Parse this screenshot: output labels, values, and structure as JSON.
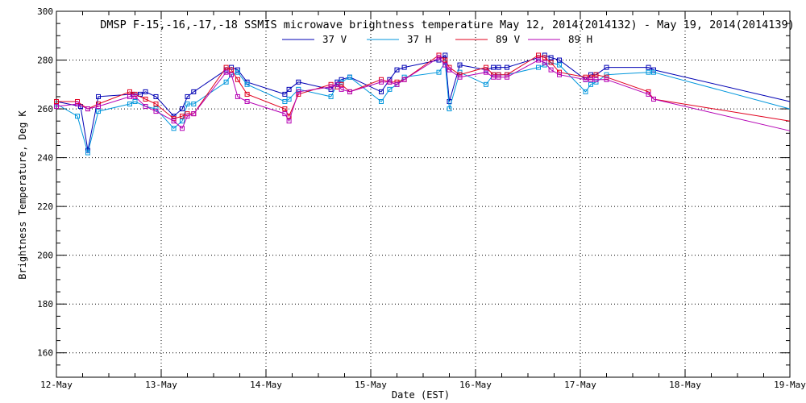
{
  "chart_data": {
    "type": "line",
    "title": "DMSP F-15,-16,-17,-18 SSMIS microwave brightness temperature May 12, 2014(2014132) - May 19, 2014(2014139)",
    "xlabel": "Date (EST)",
    "ylabel": "Brightness Temperature, Deg K",
    "x_ticks": [
      "12-May",
      "13-May",
      "14-May",
      "15-May",
      "16-May",
      "17-May",
      "18-May",
      "19-May"
    ],
    "xlim": [
      12,
      19
    ],
    "ylim": [
      150,
      300
    ],
    "y_ticks": [
      160,
      180,
      200,
      220,
      240,
      260,
      280,
      300
    ],
    "grid": true,
    "legend_position": "top-center",
    "series": [
      {
        "name": "37 V",
        "color": "#0000b4",
        "x": [
          12.0,
          12.23,
          12.3,
          12.4,
          12.73,
          12.8,
          12.85,
          12.95,
          13.12,
          13.2,
          13.25,
          13.31,
          13.62,
          13.67,
          13.73,
          13.82,
          14.18,
          14.22,
          14.31,
          14.62,
          14.68,
          14.72,
          14.8,
          15.1,
          15.18,
          15.25,
          15.32,
          15.65,
          15.71,
          15.75,
          15.85,
          16.1,
          16.17,
          16.22,
          16.3,
          16.6,
          16.66,
          16.72,
          16.8,
          17.05,
          17.1,
          17.15,
          17.25,
          17.65,
          17.7,
          19.0
        ],
        "y": [
          263,
          261,
          243,
          265,
          266,
          266,
          267,
          265,
          257,
          260,
          265,
          267,
          276,
          277,
          276,
          271,
          266,
          268,
          271,
          268,
          271,
          272,
          273,
          267,
          272,
          276,
          277,
          280,
          282,
          263,
          278,
          276,
          277,
          277,
          277,
          281,
          282,
          281,
          280,
          272,
          274,
          274,
          277,
          277,
          276,
          263
        ]
      },
      {
        "name": "37 H",
        "color": "#0096dc",
        "x": [
          12.0,
          12.2,
          12.3,
          12.4,
          12.7,
          12.75,
          12.85,
          12.95,
          13.12,
          13.2,
          13.25,
          13.31,
          13.62,
          13.67,
          13.73,
          13.82,
          14.18,
          14.22,
          14.31,
          14.62,
          14.68,
          14.72,
          14.8,
          15.1,
          15.18,
          15.25,
          15.32,
          15.65,
          15.71,
          15.75,
          15.85,
          16.1,
          16.17,
          16.22,
          16.3,
          16.6,
          16.66,
          16.72,
          16.8,
          17.05,
          17.1,
          17.15,
          17.25,
          17.65,
          17.7,
          19.0
        ],
        "y": [
          262,
          257,
          242,
          259,
          262,
          263,
          261,
          260,
          252,
          255,
          262,
          262,
          271,
          274,
          275,
          270,
          263,
          264,
          268,
          265,
          270,
          271,
          273,
          263,
          268,
          270,
          273,
          275,
          279,
          260,
          275,
          270,
          274,
          274,
          274,
          277,
          278,
          279,
          278,
          267,
          270,
          271,
          274,
          275,
          275,
          260
        ]
      },
      {
        "name": "89 V",
        "color": "#e1001e",
        "x": [
          12.0,
          12.2,
          12.3,
          12.4,
          12.7,
          12.75,
          12.85,
          12.95,
          13.12,
          13.2,
          13.25,
          13.31,
          13.62,
          13.67,
          13.73,
          13.82,
          14.18,
          14.22,
          14.31,
          14.62,
          14.68,
          14.72,
          14.8,
          15.1,
          15.18,
          15.25,
          15.32,
          15.65,
          15.71,
          15.75,
          15.85,
          16.1,
          16.17,
          16.22,
          16.3,
          16.6,
          16.66,
          16.72,
          16.8,
          17.05,
          17.1,
          17.15,
          17.25,
          17.65,
          17.7,
          19.0
        ],
        "y": [
          263,
          263,
          260,
          262,
          267,
          266,
          264,
          262,
          256,
          257,
          258,
          258,
          277,
          276,
          272,
          266,
          260,
          257,
          266,
          270,
          269,
          270,
          267,
          272,
          271,
          271,
          272,
          282,
          280,
          277,
          274,
          277,
          274,
          274,
          274,
          282,
          281,
          279,
          275,
          273,
          273,
          274,
          273,
          267,
          264,
          255
        ]
      },
      {
        "name": "89 H",
        "color": "#b400b4",
        "x": [
          12.0,
          12.2,
          12.3,
          12.4,
          12.7,
          12.75,
          12.85,
          12.95,
          13.12,
          13.2,
          13.25,
          13.31,
          13.62,
          13.67,
          13.73,
          13.82,
          14.18,
          14.22,
          14.31,
          14.62,
          14.68,
          14.72,
          14.8,
          15.1,
          15.18,
          15.25,
          15.32,
          15.65,
          15.71,
          15.75,
          15.85,
          16.1,
          16.17,
          16.22,
          16.3,
          16.6,
          16.66,
          16.72,
          16.8,
          17.05,
          17.1,
          17.15,
          17.25,
          17.65,
          17.7,
          19.0
        ],
        "y": [
          261,
          262,
          260,
          261,
          265,
          265,
          261,
          259,
          255,
          252,
          257,
          258,
          275,
          274,
          265,
          263,
          258,
          255,
          267,
          269,
          270,
          268,
          267,
          271,
          271,
          270,
          272,
          281,
          278,
          276,
          273,
          275,
          273,
          273,
          273,
          280,
          279,
          276,
          274,
          272,
          272,
          272,
          272,
          266,
          264,
          251
        ]
      }
    ]
  }
}
